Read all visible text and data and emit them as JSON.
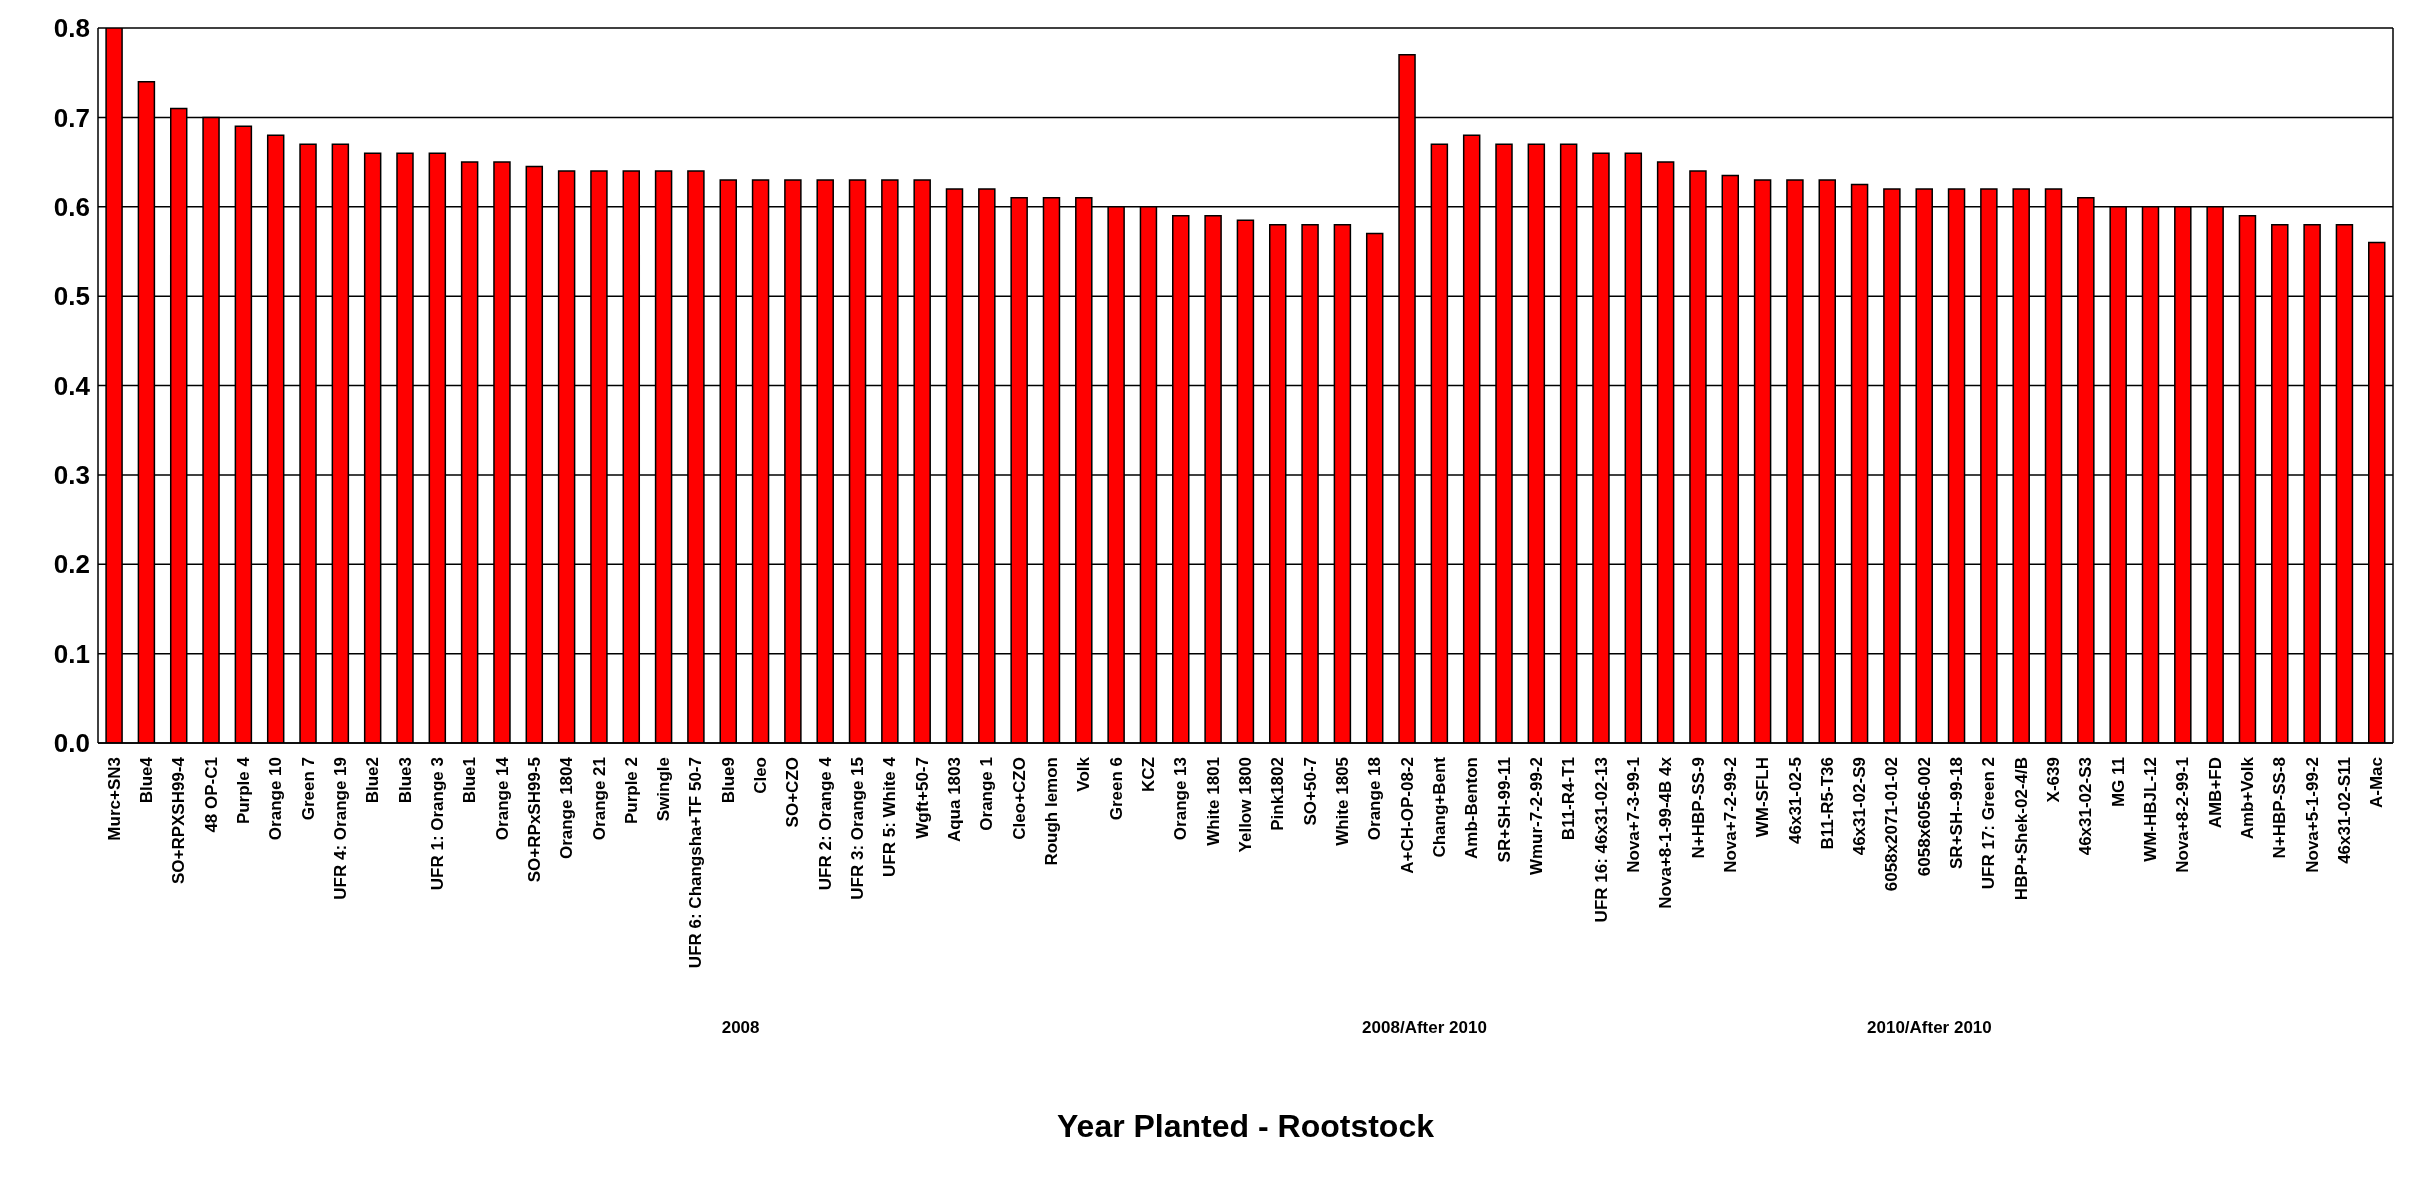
{
  "chart_data": {
    "type": "bar",
    "xlabel": "Year Planted - Rootstock",
    "categories": [
      "Murc+SN3",
      "Blue4",
      "SO+RPXSH99-4",
      "48 OP-C1",
      "Purple 4",
      "Orange 10",
      "Green 7",
      "UFR 4: Orange 19",
      "Blue2",
      "Blue3",
      "UFR 1: Orange 3",
      "Blue1",
      "Orange 14",
      "SO+RPxSH99-5",
      "Orange 1804",
      "Orange 21",
      "Purple 2",
      "Swingle",
      "UFR 6: Changsha+TF 50-7",
      "Blue9",
      "Cleo",
      "SO+CZO",
      "UFR 2: Orange 4",
      "UFR 3: Orange 15",
      "UFR 5: White 4",
      "Wgft+50-7",
      "Aqua 1803",
      "Orange 1",
      "Cleo+CZO",
      "Rough lemon",
      "Volk",
      "Green 6",
      "KCZ",
      "Orange 13",
      "White 1801",
      "Yellow 1800",
      "Pink1802",
      "SO+50-7",
      "White 1805",
      "Orange 18",
      "A+CH-OP-08-2",
      "Chang+Bent",
      "Amb-Benton",
      "SR+SH-99-11",
      "Wmur-7-2-99-2",
      "B11-R4-T1",
      "UFR 16: 46x31-02-13",
      "Nova+7-3-99-1",
      "Nova+8-1-99-4B 4x",
      "N+HBP-SS-9",
      "Nova+7-2-99-2",
      "WM-SFLH",
      "46x31-02-5",
      "B11-R5-T36",
      "46x31-02-S9",
      "6058x2071-01-02",
      "6058x6056-002",
      "SR+SH--99-18",
      "UFR 17: Green 2",
      "HBP+Shek-02-4/B",
      "X-639",
      "46x31-02-S3",
      "MG 11",
      "WM-HBJL-12",
      "Nova+8-2-99-1",
      "AMB+FD",
      "Amb+Volk",
      "N+HBP-SS-8",
      "Nova+5-1-99-2",
      "46x31-02-S11",
      "A-Mac"
    ],
    "values": [
      0.8,
      0.74,
      0.71,
      0.7,
      0.69,
      0.68,
      0.67,
      0.67,
      0.66,
      0.66,
      0.66,
      0.65,
      0.65,
      0.645,
      0.64,
      0.64,
      0.64,
      0.64,
      0.64,
      0.63,
      0.63,
      0.63,
      0.63,
      0.63,
      0.63,
      0.63,
      0.62,
      0.62,
      0.61,
      0.61,
      0.61,
      0.6,
      0.6,
      0.59,
      0.59,
      0.585,
      0.58,
      0.58,
      0.58,
      0.57,
      0.77,
      0.67,
      0.68,
      0.67,
      0.67,
      0.67,
      0.66,
      0.66,
      0.65,
      0.64,
      0.635,
      0.63,
      0.63,
      0.63,
      0.625,
      0.62,
      0.62,
      0.62,
      0.62,
      0.62,
      0.62,
      0.61,
      0.6,
      0.6,
      0.6,
      0.6,
      0.59,
      0.58,
      0.58,
      0.58,
      0.56
    ],
    "color": "#ff0000",
    "ylim": [
      0,
      0.8
    ],
    "yticks": [
      {
        "value": 0,
        "label": "0.0"
      },
      0.1,
      0.2,
      0.3,
      0.4,
      0.5,
      0.6,
      0.7,
      0.8
    ],
    "grid": "y",
    "annotations": [
      "2008",
      "2008/After 2010",
      "2010/After 2010"
    ]
  }
}
